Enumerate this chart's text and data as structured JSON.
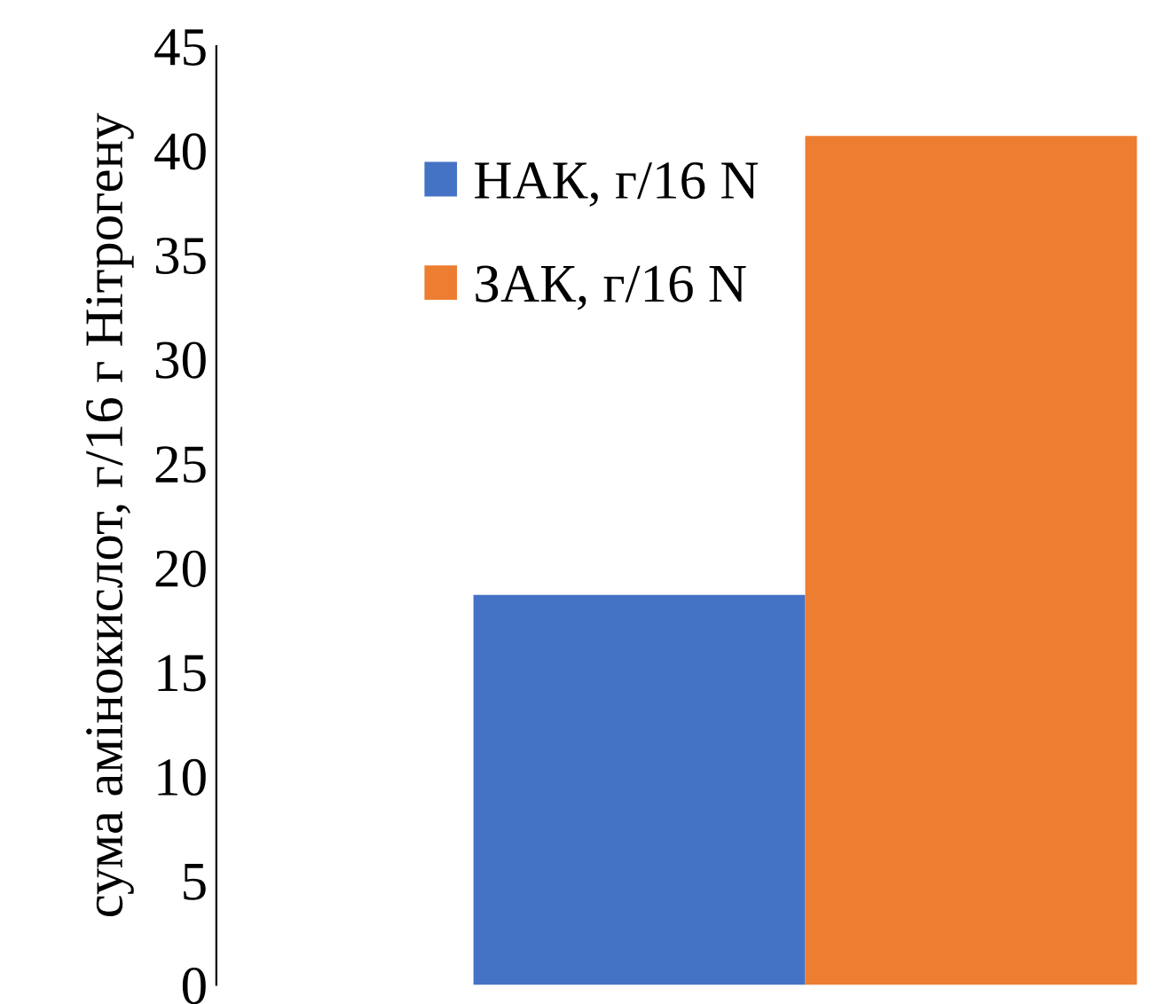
{
  "chart_data": {
    "type": "bar",
    "ylabel": "сума амінокислот, г/16 г Нітрогену",
    "categories": [
      null
    ],
    "series": [
      {
        "name": "НАК, г/16 N",
        "color": "#4472c4",
        "values": [
          18.7
        ]
      },
      {
        "name": "ЗАК, г/16 N",
        "color": "#ed7d31",
        "values": [
          40.7
        ]
      }
    ],
    "ylim": [
      0,
      45
    ],
    "yticks": [
      0,
      5,
      10,
      15,
      20,
      25,
      30,
      35,
      40,
      45
    ],
    "grid": false,
    "legend": "top left"
  }
}
